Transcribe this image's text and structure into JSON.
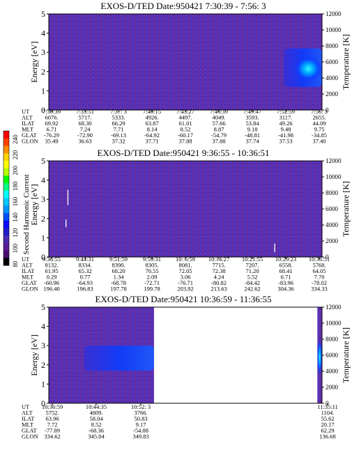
{
  "colorbar": {
    "label": "Second Harmonic Current",
    "ticks": [
      "240",
      "220",
      "200",
      "180",
      "160",
      "140",
      "120",
      "100",
      "80"
    ],
    "colors": [
      "#ff0000",
      "#ff4000",
      "#ff8c00",
      "#ffd200",
      "#ffff00",
      "#b4ff00",
      "#00ff00",
      "#00ff80",
      "#00ffff",
      "#00c8ff",
      "#0096ff",
      "#0050ff",
      "#0a0aff",
      "#2020c8",
      "#4b2cb4",
      "#5a1e9a",
      "#4a0a70",
      "#000000"
    ]
  },
  "chart_data": [
    {
      "type": "heatmap",
      "title": "EXOS-D/TED   Date:950421  7:30:39 - 7:56: 3",
      "ylabel": "Energy [eV]",
      "y2label": "Temperature [K]",
      "ylim": [
        0,
        5
      ],
      "y2lim": [
        0,
        12000
      ],
      "yticks": [
        "0",
        "1",
        "2",
        "3",
        "4",
        "5"
      ],
      "y2ticks": [
        "0",
        "2000",
        "4000",
        "6000",
        "8000",
        "10000",
        "12000"
      ],
      "x": [
        "7:30:39",
        "7:33:51",
        "7:37: 3",
        "7:40:15",
        "7:43:27",
        "7:46:39",
        "7:49:47",
        "7:52:59",
        "7:56: 3"
      ],
      "xlim": [
        0,
        1
      ],
      "blobs": [
        {
          "x": [
            0.86,
            1.0
          ],
          "y": [
            1.2,
            3.2
          ],
          "level": "mid"
        },
        {
          "x": [
            0.9,
            1.0
          ],
          "y": [
            1.5,
            2.8
          ],
          "level": "high"
        }
      ],
      "rows": [
        {
          "label": "UT",
          "values": [
            "7:30:39",
            "7:33:51",
            "7:37: 3",
            "7:40:15",
            "7:43:27",
            "7:46:39",
            "7:49:47",
            "7:52:59",
            "7:56: 3"
          ]
        },
        {
          "label": "ALT",
          "values": [
            "6076.",
            "5717.",
            "5333.",
            "4926.",
            "4497.",
            "4049.",
            "3593.",
            "3117.",
            "2655."
          ]
        },
        {
          "label": "ILAT",
          "values": [
            "69.92",
            "68.30",
            "66.29",
            "63.87",
            "61.01",
            "57.66",
            "53.84",
            "49.26",
            "44.09"
          ]
        },
        {
          "label": "MLT",
          "values": [
            "6.71",
            "7.24",
            "7.71",
            "8.14",
            "8.52",
            "8.87",
            "9.18",
            "9.48",
            "9.75"
          ]
        },
        {
          "label": "GLAT",
          "values": [
            "-76.29",
            "-72.90",
            "-69.13",
            "-64.92",
            "-60.17",
            "-54.79",
            "-48.81",
            "-41.98",
            "-34.85"
          ]
        },
        {
          "label": "GLON",
          "values": [
            "35.49",
            "36.63",
            "37.32",
            "37.71",
            "37.88",
            "37.88",
            "37.74",
            "37.53",
            "37.40"
          ]
        }
      ]
    },
    {
      "type": "heatmap",
      "title": "EXOS-D/TED   Date:950421  9:36:55 - 10:36:51",
      "ylabel": "Energy [eV]",
      "y2label": "Temperature [K]",
      "ylim": [
        0,
        5
      ],
      "y2lim": [
        0,
        12000
      ],
      "yticks": [
        "0",
        "1",
        "2",
        "3",
        "4",
        "5"
      ],
      "y2ticks": [
        "0",
        "2000",
        "4000",
        "6000",
        "8000",
        "10000",
        "12000"
      ],
      "x": [
        "9:36:55",
        "9:44:31",
        "9:51:59",
        "9:59:31",
        "10: 6:59",
        "10:14:27",
        "10:21:55",
        "10:29:23",
        "10:36:51"
      ],
      "xlim": [
        0,
        1
      ],
      "streaks": [
        {
          "x": 0.07,
          "y": [
            2.7,
            3.5
          ]
        },
        {
          "x": 0.063,
          "y": [
            1.55,
            1.95
          ]
        },
        {
          "x": 0.827,
          "y": [
            0.25,
            0.7
          ]
        }
      ],
      "rows": [
        {
          "label": "UT",
          "values": [
            "9:36:55",
            "9:44:31",
            "9:51:59",
            "9:59:31",
            "10: 6:59",
            "10:14:27",
            "10:21:55",
            "10:29:23",
            "10:36:51"
          ]
        },
        {
          "label": "ALT",
          "values": [
            "8132.",
            "8334.",
            "8390.",
            "8305.",
            "8081.",
            "7715.",
            "7207.",
            "6558.",
            "5768."
          ]
        },
        {
          "label": "ILAT",
          "values": [
            "61.95",
            "65.32",
            "68.20",
            "70.55",
            "72.05",
            "72.38",
            "71.20",
            "68.41",
            "64.05"
          ]
        },
        {
          "label": "MLT",
          "values": [
            "0.29",
            "0.77",
            "1.34",
            "2.09",
            "3.06",
            "4.24",
            "5.52",
            "6.71",
            "7.70"
          ]
        },
        {
          "label": "GLAT",
          "values": [
            "-60.96",
            "-64.93",
            "-68.78",
            "-72.71",
            "-76.71",
            "-80.82",
            "-84.42",
            "-83.96",
            "-78.02"
          ]
        },
        {
          "label": "GLON",
          "values": [
            "196.40",
            "196.83",
            "197.78",
            "199.78",
            "203.92",
            "213.63",
            "242.62",
            "304.36",
            "334.33"
          ]
        }
      ]
    },
    {
      "type": "heatmap",
      "title": "EXOS-D/TED   Date:950421  10:36:59 - 11:36:55",
      "ylabel": "Energy [eV]",
      "y2label": "Temperature [K]",
      "ylim": [
        0,
        5
      ],
      "y2lim": [
        0,
        12000
      ],
      "yticks": [
        "0",
        "1",
        "2",
        "3",
        "4",
        "5"
      ],
      "y2ticks": [
        "0",
        "2000",
        "4000",
        "6000",
        "8000",
        "10000",
        "12000"
      ],
      "x": [
        "10:36:59",
        "10:44:35",
        "10:52: 3",
        "11:35:11"
      ],
      "xlim": [
        0,
        1
      ],
      "data_segments": [
        [
          0.0,
          0.385
        ],
        [
          0.983,
          1.0
        ]
      ],
      "blobs": [
        {
          "x": [
            0.13,
            0.385
          ],
          "y": [
            1.7,
            3.0
          ],
          "level": "mid"
        },
        {
          "x": [
            0.983,
            1.0
          ],
          "y": [
            1.5,
            3.3
          ],
          "level": "high"
        }
      ],
      "rows": [
        {
          "label": "UT",
          "values": [
            "10:36:59",
            "10:44:35",
            "10:52: 3",
            "11:35:11"
          ]
        },
        {
          "label": "ALT",
          "values": [
            "5752.",
            "4809.",
            "3766.",
            "1104."
          ]
        },
        {
          "label": "ILAT",
          "values": [
            "63.96",
            "58.04",
            "50.83",
            "55.62"
          ]
        },
        {
          "label": "MLT",
          "values": [
            "7.72",
            "8.52",
            "9.17",
            "20.17"
          ]
        },
        {
          "label": "GLAT",
          "values": [
            "-77.89",
            "-68.36",
            "-54.88",
            "62.29"
          ]
        },
        {
          "label": "GLON",
          "values": [
            "334.62",
            "345.04",
            "349.83",
            "136.68"
          ]
        }
      ]
    }
  ]
}
